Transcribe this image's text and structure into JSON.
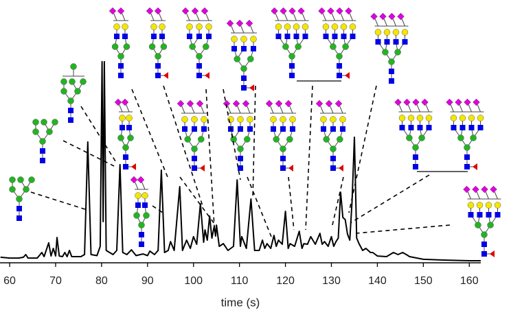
{
  "chart_data": {
    "type": "line",
    "x_label": "time (s)",
    "color": "#000000",
    "xlim": [
      57.9,
      162.5
    ],
    "xticks": [
      60,
      70,
      80,
      90,
      100,
      110,
      120,
      130,
      140,
      150,
      160
    ],
    "ylim": [
      0,
      100
    ],
    "x": [
      58,
      60,
      62,
      63,
      63.5,
      64,
      66,
      67,
      67.5,
      68.5,
      69,
      69.5,
      70,
      70.3,
      70.8,
      71.5,
      72,
      72.5,
      73,
      73.5,
      75.5,
      76.3,
      77,
      77.7,
      79,
      79.7,
      80.1,
      80.35,
      80.6,
      81,
      82.5,
      83.3,
      84,
      84.6,
      85.5,
      86.5,
      87.5,
      89,
      90,
      90.5,
      91.5,
      92.3,
      93,
      93.7,
      94.5,
      95,
      95.8,
      97,
      97.6,
      98.5,
      99.3,
      100,
      100.7,
      101.5,
      102.2,
      102.5,
      103,
      103.5,
      104,
      104.5,
      104.8,
      105,
      105.6,
      106.5,
      107.5,
      108.7,
      109.5,
      110.2,
      110.5,
      111.5,
      112.5,
      113.3,
      114.3,
      115,
      115.5,
      116,
      116.8,
      117.5,
      118,
      118.5,
      119.3,
      120,
      120.6,
      121,
      122,
      123,
      123.6,
      124,
      124.8,
      125.5,
      126.5,
      127.5,
      128,
      128.5,
      129.3,
      130,
      130.5,
      131,
      131.5,
      132,
      132.5,
      133,
      133.5,
      134,
      134.5,
      135,
      135.5,
      136,
      136.8,
      137.5,
      138.5,
      139,
      140,
      142,
      143.5,
      144.5,
      145.5,
      146.3,
      147,
      150,
      155,
      160,
      162.5
    ],
    "values": [
      2.7,
      2.3,
      2.3,
      2.7,
      4,
      2.3,
      2.3,
      5,
      3,
      9.7,
      3.3,
      7,
      3.3,
      12.3,
      3.3,
      3,
      5,
      3,
      6,
      3,
      3,
      4,
      58.7,
      4,
      3.5,
      8,
      97.7,
      20,
      97.7,
      6,
      4,
      6,
      47.7,
      5,
      4,
      6.3,
      3.5,
      4.3,
      3.5,
      5.7,
      4,
      6,
      45,
      5,
      6,
      10.3,
      6,
      37,
      6,
      11,
      7,
      12.7,
      9,
      28.7,
      10,
      16,
      11,
      22.7,
      12,
      17.7,
      13,
      18.3,
      8,
      9.3,
      6,
      8,
      40.3,
      8,
      12.7,
      7,
      31,
      6,
      6,
      11,
      7,
      9.3,
      7,
      13.3,
      8,
      11,
      9,
      25,
      7,
      9.3,
      8,
      15.3,
      7,
      9.3,
      9,
      12.7,
      9,
      14.3,
      9,
      10.3,
      8,
      12.7,
      8,
      10.3,
      12,
      34.3,
      22,
      21,
      14,
      11,
      30,
      61,
      12,
      9.3,
      6,
      7,
      5,
      5,
      3.3,
      3,
      5,
      4,
      5,
      4,
      3,
      1.7,
      1.3,
      1,
      1
    ]
  }
}
